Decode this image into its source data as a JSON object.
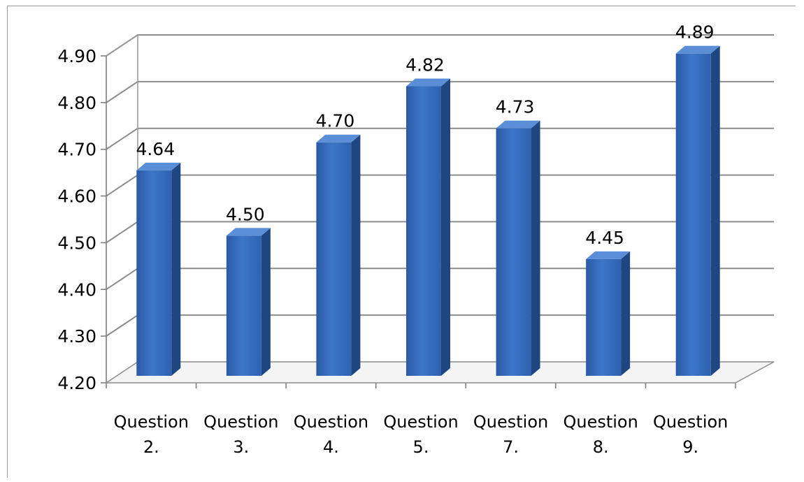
{
  "chart_data": {
    "type": "bar",
    "style": "3d-column",
    "categories": [
      [
        "Question",
        "2."
      ],
      [
        "Question",
        "3."
      ],
      [
        "Question",
        "4."
      ],
      [
        "Question",
        "5."
      ],
      [
        "Question",
        "7."
      ],
      [
        "Question",
        "8."
      ],
      [
        "Question",
        "9."
      ]
    ],
    "values": [
      4.64,
      4.5,
      4.7,
      4.82,
      4.73,
      4.45,
      4.89
    ],
    "data_labels": [
      "4.64",
      "4.50",
      "4.70",
      "4.82",
      "4.73",
      "4.45",
      "4.89"
    ],
    "y_ticks": [
      "4.20",
      "4.30",
      "4.40",
      "4.50",
      "4.60",
      "4.70",
      "4.80",
      "4.90"
    ],
    "ylim": [
      4.2,
      4.9
    ],
    "title": "",
    "xlabel": "",
    "ylabel": "",
    "grid": true,
    "legend": "none",
    "colors": {
      "bar_front": "#3a70c2",
      "bar_front_dark": "#2a569c",
      "bar_side": "#1f4680",
      "bar_top": "#5a8ed6",
      "gridline": "#8c8c8c",
      "floor": "#d8d8d8"
    }
  }
}
